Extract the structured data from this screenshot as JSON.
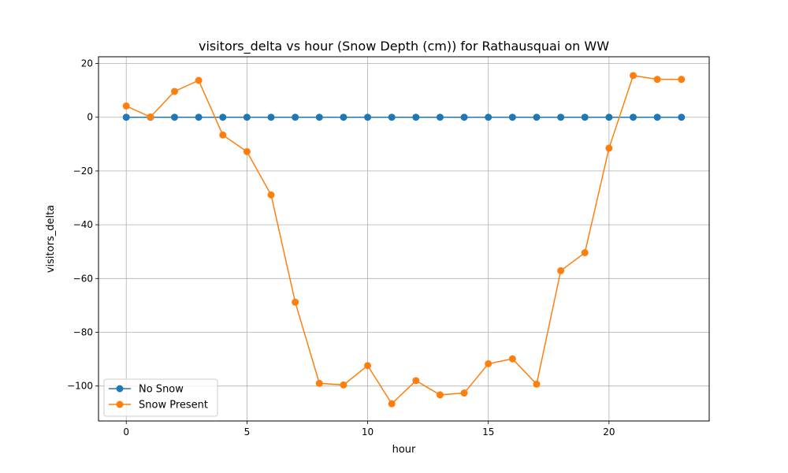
{
  "chart_data": {
    "type": "line",
    "title": "visitors_delta vs hour (Snow Depth (cm)) for Rathausquai on WW",
    "xlabel": "hour",
    "ylabel": "visitors_delta",
    "xlim": [
      -1.15,
      24.15
    ],
    "ylim": [
      -113,
      22.5
    ],
    "xticks": [
      0,
      5,
      10,
      15,
      20
    ],
    "yticks": [
      20,
      0,
      -20,
      -40,
      -60,
      -80,
      -100
    ],
    "grid": true,
    "legend_position": "lower-left",
    "x": [
      0,
      1,
      2,
      3,
      4,
      5,
      6,
      7,
      8,
      9,
      10,
      11,
      12,
      13,
      14,
      15,
      16,
      17,
      18,
      19,
      20,
      21,
      22,
      23
    ],
    "series": [
      {
        "name": "No Snow",
        "color": "#1f77b4",
        "values": [
          0,
          0,
          0,
          0,
          0,
          0,
          0,
          0,
          0,
          0,
          0,
          0,
          0,
          0,
          0,
          0,
          0,
          0,
          0,
          0,
          0,
          0,
          0,
          0
        ]
      },
      {
        "name": "Snow Present",
        "color": "#ff7f0e",
        "values": [
          4.2,
          0.1,
          9.6,
          13.7,
          -6.6,
          -12.8,
          -28.9,
          -68.8,
          -99.0,
          -99.6,
          -92.4,
          -106.6,
          -98.0,
          -103.3,
          -102.6,
          -91.7,
          -89.9,
          -99.3,
          -57.1,
          -50.4,
          -11.5,
          15.5,
          14.1,
          14.1
        ]
      }
    ]
  }
}
